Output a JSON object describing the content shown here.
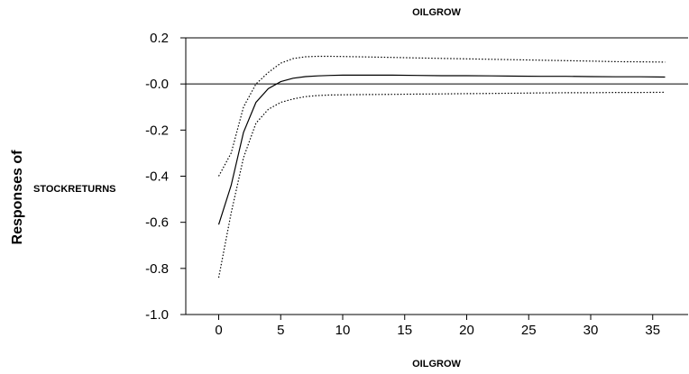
{
  "chart_data": {
    "type": "line",
    "title": "OILGROW",
    "xlabel": "OILGROW",
    "ylabel_outer": "Responses of",
    "ylabel_inner": "STOCKRETURNS",
    "xlim": [
      -3,
      37
    ],
    "ylim": [
      -1.0,
      0.2
    ],
    "xticks": [
      0,
      5,
      10,
      15,
      20,
      25,
      30,
      35
    ],
    "yticks": [
      0.2,
      0.0,
      -0.2,
      -0.4,
      -0.6,
      -0.8,
      -1.0
    ],
    "ytick_labels": [
      "0.2",
      "-0.0",
      "-0.2",
      "-0.4",
      "-0.6",
      "-0.8",
      "-1.0"
    ],
    "grid": false,
    "x": [
      0,
      1,
      2,
      3,
      4,
      5,
      6,
      7,
      8,
      9,
      10,
      12,
      14,
      16,
      18,
      20,
      22,
      24,
      26,
      28,
      30,
      32,
      34,
      36
    ],
    "series": [
      {
        "role": "response",
        "style": "solid",
        "values": [
          -0.61,
          -0.44,
          -0.21,
          -0.08,
          -0.02,
          0.01,
          0.025,
          0.032,
          0.035,
          0.037,
          0.038,
          0.038,
          0.038,
          0.037,
          0.036,
          0.036,
          0.035,
          0.034,
          0.033,
          0.033,
          0.032,
          0.031,
          0.031,
          0.03
        ]
      },
      {
        "role": "upper band",
        "style": "dotted",
        "values": [
          -0.4,
          -0.3,
          -0.1,
          0.0,
          0.05,
          0.09,
          0.11,
          0.118,
          0.12,
          0.12,
          0.119,
          0.117,
          0.115,
          0.113,
          0.111,
          0.109,
          0.107,
          0.105,
          0.103,
          0.101,
          0.099,
          0.097,
          0.096,
          0.095
        ]
      },
      {
        "role": "lower band",
        "style": "dotted",
        "values": [
          -0.84,
          -0.56,
          -0.32,
          -0.17,
          -0.11,
          -0.08,
          -0.065,
          -0.055,
          -0.05,
          -0.048,
          -0.047,
          -0.046,
          -0.045,
          -0.044,
          -0.043,
          -0.042,
          -0.041,
          -0.04,
          -0.039,
          -0.038,
          -0.038,
          -0.037,
          -0.037,
          -0.036
        ]
      }
    ]
  }
}
